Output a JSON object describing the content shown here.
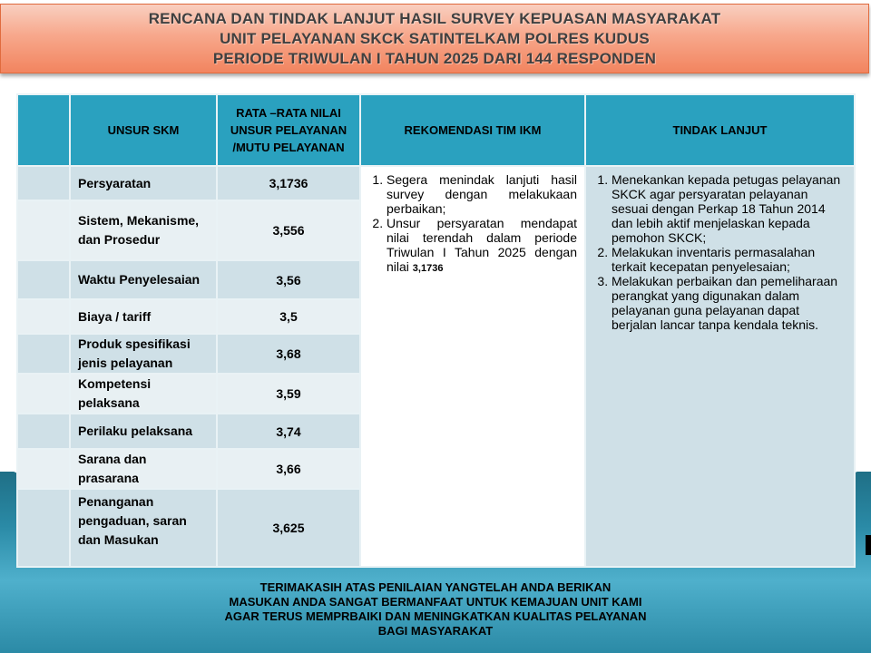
{
  "title": {
    "lines": [
      "RENCANA DAN TINDAK LANJUT HASIL SURVEY KEPUASAN MASYARAKAT",
      "UNIT PELAYANAN SKCK SATINTELKAM POLRES KUDUS",
      "PERIODE TRIWULAN I TAHUN 2025 DARI 144 RESPONDEN"
    ]
  },
  "table": {
    "headers": [
      "",
      "UNSUR SKM",
      "RATA –RATA NILAI UNSUR PELAYANAN /MUTU PELAYANAN",
      "REKOMENDASI TIM IKM",
      "TINDAK LANJUT"
    ],
    "rows": [
      {
        "unsur": "Persyaratan",
        "nilai": "3,1736"
      },
      {
        "unsur": "Sistem, Mekanisme, dan Prosedur",
        "nilai": "3,556"
      },
      {
        "unsur": "Waktu Penyelesaian",
        "nilai": "3,56"
      },
      {
        "unsur": "Biaya / tariff",
        "nilai": "3,5"
      },
      {
        "unsur": "Produk spesifikasi jenis pelayanan",
        "nilai": "3,68"
      },
      {
        "unsur": "Kompetensi pelaksana",
        "nilai": "3,59"
      },
      {
        "unsur": "Perilaku pelaksana",
        "nilai": "3,74"
      },
      {
        "unsur": "Sarana dan prasarana",
        "nilai": "3,66"
      },
      {
        "unsur": "Penanganan pengaduan, saran dan Masukan",
        "nilai": "3,625"
      }
    ],
    "rekomendasi": [
      "Segera menindak lanjuti hasil survey dengan melakukaan perbaikan;",
      "Unsur persyaratan mendapat nilai terendah dalam periode Triwulan I Tahun 2025 dengan nilai"
    ],
    "rekomendasi_value": "3,1736",
    "tindak_lanjut": [
      "Menekankan kepada petugas pelayanan SKCK agar persyaratan pelayanan sesuai dengan Perkap 18 Tahun 2014 dan lebih aktif menjelaskan kepada pemohon SKCK;",
      "Melakukan inventaris permasalahan terkait kecepatan penyelesaian;",
      "Melakukan perbaikan dan pemeliharaan perangkat yang digunakan dalam pelayanan guna pelayanan dapat berjalan lancar tanpa kendala teknis."
    ]
  },
  "footer": {
    "lines": [
      "TERIMAKASIH ATAS PENILAIAN YANGTELAH ANDA BERIKAN",
      "MASUKAN ANDA SANGAT BERMANFAAT UNTUK KEMAJUAN UNIT KAMI",
      "AGAR TERUS MEMPRBAIKI  DAN MENINGKATKAN KUALITAS PELAYANAN",
      "BAGI MASYARAKAT"
    ]
  },
  "colors": {
    "header": "#2aa1bf",
    "title_bg": "#f7a88c",
    "band": "#2a8aa6"
  }
}
